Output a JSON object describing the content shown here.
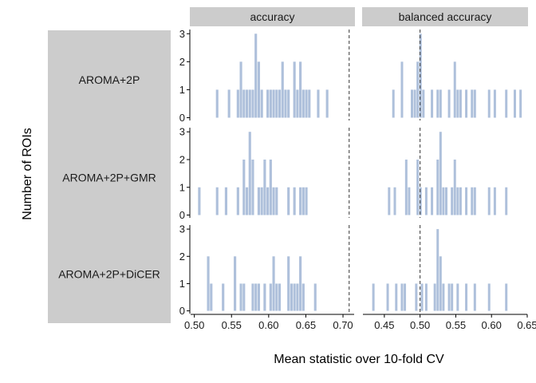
{
  "chart_data": {
    "type": "histogram-facet",
    "xlabel": "Mean statistic over 10-fold CV",
    "ylabel": "Number of ROIs",
    "bar_color": "#aec0db",
    "strip_color": "#cccccc",
    "columns": [
      {
        "label": "accuracy",
        "xlim": [
          0.495,
          0.715
        ],
        "ticks": [
          0.5,
          0.55,
          0.6,
          0.65,
          0.7
        ],
        "tick_labels": [
          "0.50",
          "0.55",
          "0.60",
          "0.65",
          "0.70"
        ],
        "reference_line": 0.7083
      },
      {
        "label": "balanced accuracy",
        "xlim": [
          0.42,
          0.65
        ],
        "ticks": [
          0.45,
          0.5,
          0.55,
          0.6,
          0.65
        ],
        "tick_labels": [
          "0.45",
          "0.50",
          "0.55",
          "0.60",
          "0.65"
        ],
        "reference_line": 0.5
      }
    ],
    "rows": [
      {
        "label": "AROMA+2P"
      },
      {
        "label": "AROMA+2P+GMR"
      },
      {
        "label": "AROMA+2P+DiCER"
      }
    ],
    "y_ticks": [
      0,
      1,
      2,
      3
    ],
    "ylim": [
      -0.1,
      3.15
    ],
    "bin_width": 0.004,
    "panels": [
      {
        "row": 0,
        "col": 0,
        "bins": [
          [
            0.531,
            1
          ],
          [
            0.547,
            1
          ],
          [
            0.559,
            1
          ],
          [
            0.563,
            2
          ],
          [
            0.567,
            1
          ],
          [
            0.571,
            1
          ],
          [
            0.575,
            1
          ],
          [
            0.579,
            1
          ],
          [
            0.583,
            3
          ],
          [
            0.587,
            2
          ],
          [
            0.591,
            1
          ],
          [
            0.599,
            1
          ],
          [
            0.603,
            1
          ],
          [
            0.607,
            1
          ],
          [
            0.611,
            1
          ],
          [
            0.615,
            1
          ],
          [
            0.619,
            2
          ],
          [
            0.623,
            1
          ],
          [
            0.627,
            1
          ],
          [
            0.635,
            2
          ],
          [
            0.639,
            1
          ],
          [
            0.643,
            2
          ],
          [
            0.647,
            1
          ],
          [
            0.651,
            1
          ],
          [
            0.655,
            1
          ],
          [
            0.667,
            1
          ],
          [
            0.679,
            1
          ]
        ]
      },
      {
        "row": 0,
        "col": 1,
        "bins": [
          [
            0.463,
            1
          ],
          [
            0.475,
            2
          ],
          [
            0.489,
            1
          ],
          [
            0.493,
            1
          ],
          [
            0.497,
            2
          ],
          [
            0.501,
            3
          ],
          [
            0.505,
            1
          ],
          [
            0.517,
            1
          ],
          [
            0.525,
            1
          ],
          [
            0.529,
            1
          ],
          [
            0.541,
            1
          ],
          [
            0.549,
            2
          ],
          [
            0.553,
            1
          ],
          [
            0.557,
            1
          ],
          [
            0.565,
            1
          ],
          [
            0.573,
            1
          ],
          [
            0.577,
            1
          ],
          [
            0.597,
            1
          ],
          [
            0.605,
            1
          ],
          [
            0.621,
            1
          ],
          [
            0.633,
            1
          ],
          [
            0.641,
            1
          ]
        ]
      },
      {
        "row": 1,
        "col": 0,
        "bins": [
          [
            0.507,
            1
          ],
          [
            0.531,
            1
          ],
          [
            0.543,
            1
          ],
          [
            0.559,
            1
          ],
          [
            0.567,
            2
          ],
          [
            0.571,
            1
          ],
          [
            0.575,
            3
          ],
          [
            0.579,
            2
          ],
          [
            0.587,
            1
          ],
          [
            0.591,
            1
          ],
          [
            0.595,
            2
          ],
          [
            0.599,
            1
          ],
          [
            0.603,
            2
          ],
          [
            0.607,
            1
          ],
          [
            0.611,
            1
          ],
          [
            0.627,
            1
          ],
          [
            0.635,
            1
          ],
          [
            0.643,
            1
          ],
          [
            0.647,
            1
          ],
          [
            0.651,
            1
          ]
        ]
      },
      {
        "row": 1,
        "col": 1,
        "bins": [
          [
            0.457,
            1
          ],
          [
            0.465,
            1
          ],
          [
            0.481,
            2
          ],
          [
            0.485,
            1
          ],
          [
            0.497,
            2
          ],
          [
            0.501,
            1
          ],
          [
            0.509,
            1
          ],
          [
            0.517,
            1
          ],
          [
            0.525,
            2
          ],
          [
            0.529,
            3
          ],
          [
            0.533,
            1
          ],
          [
            0.537,
            1
          ],
          [
            0.545,
            1
          ],
          [
            0.549,
            2
          ],
          [
            0.553,
            1
          ],
          [
            0.557,
            1
          ],
          [
            0.565,
            1
          ],
          [
            0.573,
            1
          ],
          [
            0.577,
            1
          ],
          [
            0.597,
            1
          ],
          [
            0.605,
            1
          ],
          [
            0.621,
            1
          ]
        ]
      },
      {
        "row": 2,
        "col": 0,
        "bins": [
          [
            0.519,
            2
          ],
          [
            0.523,
            1
          ],
          [
            0.539,
            1
          ],
          [
            0.555,
            2
          ],
          [
            0.563,
            1
          ],
          [
            0.567,
            1
          ],
          [
            0.579,
            1
          ],
          [
            0.583,
            1
          ],
          [
            0.587,
            1
          ],
          [
            0.595,
            1
          ],
          [
            0.603,
            1
          ],
          [
            0.607,
            2
          ],
          [
            0.611,
            1
          ],
          [
            0.615,
            1
          ],
          [
            0.627,
            2
          ],
          [
            0.631,
            1
          ],
          [
            0.635,
            1
          ],
          [
            0.639,
            1
          ],
          [
            0.643,
            2
          ],
          [
            0.647,
            1
          ],
          [
            0.663,
            1
          ]
        ]
      },
      {
        "row": 2,
        "col": 1,
        "bins": [
          [
            0.435,
            1
          ],
          [
            0.455,
            1
          ],
          [
            0.467,
            1
          ],
          [
            0.475,
            1
          ],
          [
            0.479,
            1
          ],
          [
            0.495,
            1
          ],
          [
            0.503,
            1
          ],
          [
            0.509,
            1
          ],
          [
            0.521,
            1
          ],
          [
            0.525,
            3
          ],
          [
            0.529,
            2
          ],
          [
            0.533,
            1
          ],
          [
            0.541,
            1
          ],
          [
            0.545,
            1
          ],
          [
            0.553,
            1
          ],
          [
            0.565,
            1
          ],
          [
            0.577,
            1
          ],
          [
            0.597,
            1
          ],
          [
            0.621,
            1
          ]
        ]
      }
    ]
  }
}
